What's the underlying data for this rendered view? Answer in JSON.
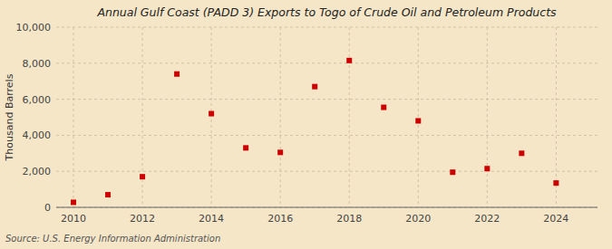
{
  "chart_data": {
    "type": "scatter",
    "title": "Annual Gulf Coast (PADD 3) Exports to Togo of Crude Oil and Petroleum Products",
    "ylabel": "Thousand Barrels",
    "annotations": [
      "Source: U.S. Energy Information Administration"
    ],
    "x": [
      2010,
      2011,
      2012,
      2013,
      2014,
      2015,
      2016,
      2017,
      2018,
      2019,
      2020,
      2021,
      2022,
      2023,
      2024
    ],
    "values": [
      280,
      700,
      1700,
      7400,
      5200,
      3300,
      3050,
      6700,
      8150,
      5550,
      4800,
      1950,
      2150,
      3000,
      1350
    ],
    "color": "#cc0000",
    "marker": "square",
    "xlim": [
      2009.5,
      2025.2
    ],
    "xticks": [
      2010,
      2012,
      2014,
      2016,
      2018,
      2020,
      2022,
      2024
    ],
    "ylim": [
      0,
      10000
    ],
    "yticks": [
      0,
      {
        "value": 2000,
        "label": "2,000"
      },
      {
        "value": 4000,
        "label": "4,000"
      },
      {
        "value": 6000,
        "label": "6,000"
      },
      {
        "value": 8000,
        "label": "8,000"
      },
      {
        "value": 10000,
        "label": "10,000"
      }
    ],
    "grid": true
  }
}
